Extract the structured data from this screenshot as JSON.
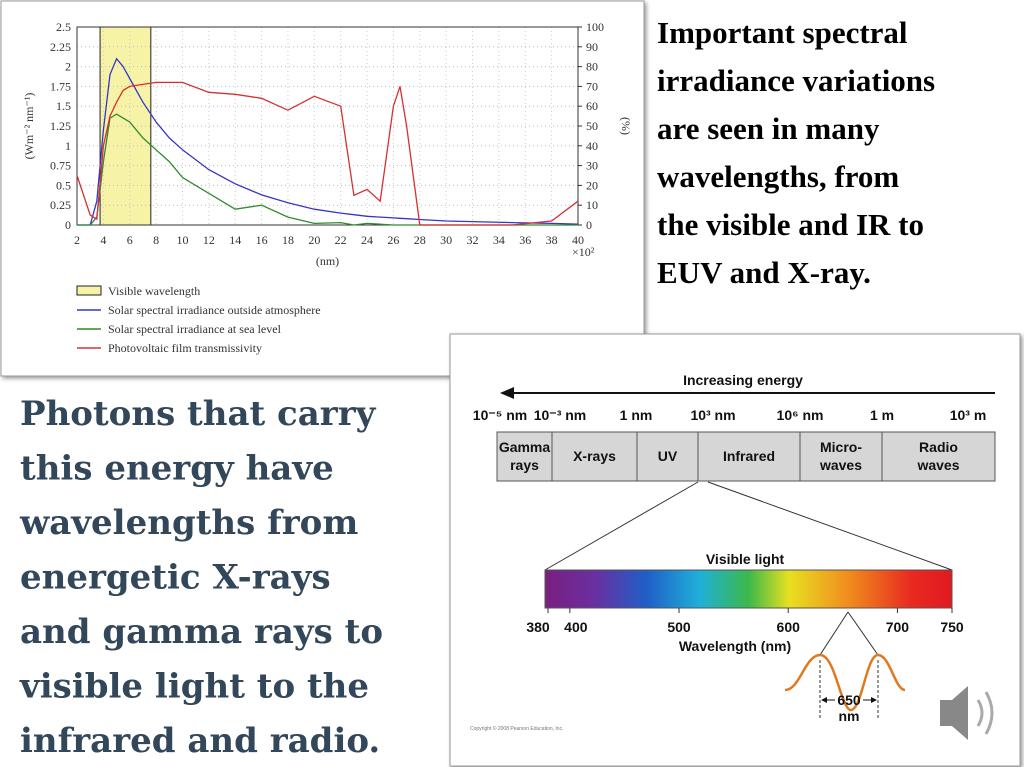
{
  "chart_data": {
    "type": "line",
    "x": [
      2,
      3,
      3.5,
      4,
      4.5,
      5,
      5.5,
      6,
      7,
      8,
      9,
      10,
      12,
      14,
      16,
      18,
      20,
      22,
      23,
      24,
      25,
      26,
      26.5,
      27,
      28,
      30,
      35,
      38,
      40
    ],
    "xlim": [
      2,
      40
    ],
    "xticks": [
      2,
      4,
      6,
      8,
      10,
      12,
      14,
      16,
      18,
      20,
      22,
      24,
      26,
      28,
      30,
      32,
      34,
      36,
      38,
      40
    ],
    "xlabel": "(nm)",
    "x_multiplier": "×10²",
    "ylabel": "(Wm⁻² nm⁻¹)",
    "ylim": [
      0,
      2.5
    ],
    "yticks": [
      0,
      0.25,
      0.5,
      0.75,
      1,
      1.25,
      1.5,
      1.75,
      2,
      2.25,
      2.5
    ],
    "y2label": "(%)",
    "y2lim": [
      0,
      100
    ],
    "y2ticks": [
      0,
      10,
      20,
      30,
      40,
      50,
      60,
      70,
      80,
      90,
      100
    ],
    "grid": true,
    "band": {
      "name": "Visible wavelength",
      "color": "#f7f3a6",
      "x": [
        3.75,
        7.6
      ]
    },
    "series": [
      {
        "name": "Solar spectral irradiance outside atmosphere",
        "color": "#3535c8",
        "values": [
          0,
          0,
          0.3,
          1.2,
          1.9,
          2.1,
          2.0,
          1.85,
          1.55,
          1.3,
          1.1,
          0.95,
          0.7,
          0.52,
          0.38,
          0.28,
          0.2,
          0.15,
          0.13,
          0.11,
          0.1,
          0.09,
          0.085,
          0.08,
          0.07,
          0.05,
          0.03,
          0.02,
          0.01
        ]
      },
      {
        "name": "Solar spectral irradiance at sea level",
        "color": "#2e8b2e",
        "values": [
          0,
          0,
          0.1,
          0.8,
          1.35,
          1.4,
          1.35,
          1.3,
          1.1,
          0.95,
          0.8,
          0.6,
          0.4,
          0.2,
          0.25,
          0.1,
          0.02,
          0.03,
          0,
          0.02,
          0.01,
          0,
          0,
          0,
          0,
          0,
          0,
          0,
          0
        ]
      },
      {
        "name": "Photovoltaic film transmissivity",
        "color": "#d83030",
        "axis": "y2",
        "values": [
          25,
          5,
          3,
          40,
          55,
          62,
          68,
          70,
          71,
          72,
          72,
          72,
          67,
          66,
          64,
          58,
          65,
          60,
          15,
          18,
          12,
          60,
          70,
          50,
          0,
          0,
          0,
          2,
          12
        ]
      }
    ]
  },
  "right_text": {
    "lines": [
      "Important spectral",
      "irradiance variations",
      "are seen in many",
      "wavelengths, from",
      "the visible and IR to",
      "EUV and X-ray."
    ]
  },
  "left_text": {
    "lines": [
      "Photons that carry",
      "this energy have",
      "wavelengths from",
      "energetic X-rays",
      "and gamma rays to",
      "visible light to the",
      "infrared and radio."
    ]
  },
  "spectrum_diagram": {
    "arrow_label": "Increasing energy",
    "scale_labels": [
      "10⁻⁵ nm",
      "10⁻³ nm",
      "1 nm",
      "10³ nm",
      "10⁶ nm",
      "1 m",
      "10³ m"
    ],
    "bands": [
      [
        "Gamma",
        "rays"
      ],
      [
        "X-rays"
      ],
      [
        "UV"
      ],
      [
        "Infrared"
      ],
      [
        "Micro-",
        "waves"
      ],
      [
        "Radio",
        "waves"
      ]
    ],
    "visible_label": "Visible light",
    "visible_scale": {
      "lim": [
        380,
        750
      ],
      "ticks": [
        380,
        400,
        500,
        600,
        700,
        750
      ]
    },
    "axis_label": "Wavelength (nm)",
    "wave_label": [
      "650",
      "nm"
    ],
    "copyright": "Copyright © 2008 Pearson Education, Inc."
  }
}
